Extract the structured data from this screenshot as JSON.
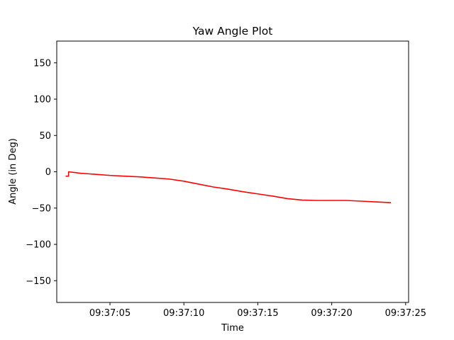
{
  "chart_data": {
    "type": "line",
    "title": "Yaw Angle Plot",
    "xlabel": "Time",
    "ylabel": "Angle (in Deg)",
    "xlim": [
      "09:37:01.4",
      "09:37:25.2"
    ],
    "ylim": [
      -180,
      180
    ],
    "x_ticks": [
      "09:37:05",
      "09:37:10",
      "09:37:15",
      "09:37:20",
      "09:37:25"
    ],
    "y_ticks": [
      150,
      100,
      50,
      0,
      -50,
      -100,
      -150
    ],
    "y_tick_labels": [
      "150",
      "100",
      "50",
      "0",
      "−50",
      "−100",
      "−150"
    ],
    "grid": false,
    "series": [
      {
        "color": "#ff0000",
        "x": [
          "09:37:02.0",
          "09:37:02.2",
          "09:37:02.2",
          "09:37:03",
          "09:37:04",
          "09:37:05",
          "09:37:06",
          "09:37:07",
          "09:37:08",
          "09:37:09",
          "09:37:10",
          "09:37:11",
          "09:37:12",
          "09:37:13",
          "09:37:14",
          "09:37:15",
          "09:37:16",
          "09:37:17",
          "09:37:18",
          "09:37:19",
          "09:37:20",
          "09:37:21",
          "09:37:22",
          "09:37:23",
          "09:37:24"
        ],
        "y": [
          -6,
          -6,
          0,
          -2,
          -3.5,
          -5,
          -6,
          -7,
          -8.5,
          -10,
          -13,
          -17,
          -21,
          -24,
          -27.5,
          -30.5,
          -33.5,
          -37,
          -39,
          -39.5,
          -39.5,
          -39.5,
          -40.5,
          -41.5,
          -42.5
        ]
      }
    ]
  }
}
